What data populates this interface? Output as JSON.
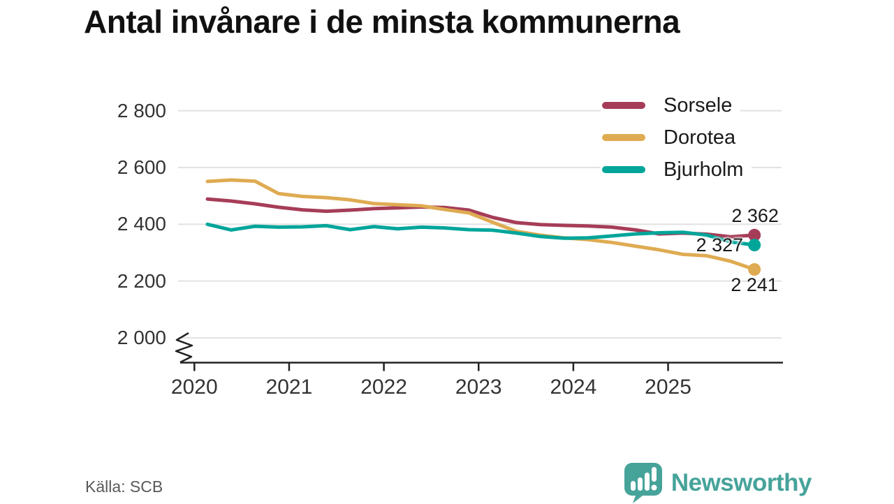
{
  "title": "Antal invånare i de minsta kommunerna",
  "source": "Källa: SCB",
  "branding": {
    "name": "Newsworthy",
    "color": "#46a39a",
    "icon": "bar-chart-speech-bubble"
  },
  "chart_data": {
    "type": "line",
    "title": "Antal invånare i de minsta kommunerna",
    "xlabel": "",
    "ylabel": "",
    "grid": "horizontal",
    "axis_break_at_bottom": true,
    "legend_position": "top-right",
    "ylim_visible": [
      1990,
      2860
    ],
    "y_ticks": [
      2800,
      2600,
      2400,
      2200,
      2000
    ],
    "y_tick_labels": [
      "2 800",
      "2 600",
      "2 400",
      "2 200",
      "2 000"
    ],
    "x_tick_labels": [
      "2020",
      "2021",
      "2022",
      "2023",
      "2024",
      "2025"
    ],
    "x": [
      "2020 K1",
      "2020 K2",
      "2020 K3",
      "2020 K4",
      "2021 K1",
      "2021 K2",
      "2021 K3",
      "2021 K4",
      "2022 K1",
      "2022 K2",
      "2022 K3",
      "2022 K4",
      "2023 K1",
      "2023 K2",
      "2023 K3",
      "2023 K4",
      "2024 K1",
      "2024 K2",
      "2024 K3",
      "2024 K4",
      "2025 K1",
      "2025 K2",
      "2025 K3",
      "2025 K4"
    ],
    "series": [
      {
        "name": "Sorsele",
        "color": "#a63d58",
        "end_label": "2 362",
        "label_placement": "above",
        "values": [
          2489,
          2482,
          2472,
          2460,
          2451,
          2446,
          2450,
          2455,
          2458,
          2461,
          2459,
          2450,
          2424,
          2406,
          2399,
          2396,
          2394,
          2390,
          2380,
          2366,
          2369,
          2365,
          2356,
          2362
        ]
      },
      {
        "name": "Dorotea",
        "color": "#dfab52",
        "end_label": "2 241",
        "label_placement": "below",
        "values": [
          2551,
          2556,
          2552,
          2508,
          2498,
          2494,
          2486,
          2473,
          2469,
          2465,
          2452,
          2440,
          2407,
          2375,
          2362,
          2352,
          2346,
          2336,
          2323,
          2310,
          2294,
          2289,
          2270,
          2241
        ]
      },
      {
        "name": "Bjurholm",
        "color": "#00a59a",
        "end_label": "2 327",
        "label_placement": "left",
        "values": [
          2400,
          2380,
          2393,
          2390,
          2391,
          2395,
          2381,
          2392,
          2384,
          2390,
          2387,
          2381,
          2379,
          2369,
          2357,
          2351,
          2352,
          2359,
          2366,
          2370,
          2372,
          2362,
          2338,
          2327
        ]
      }
    ]
  }
}
